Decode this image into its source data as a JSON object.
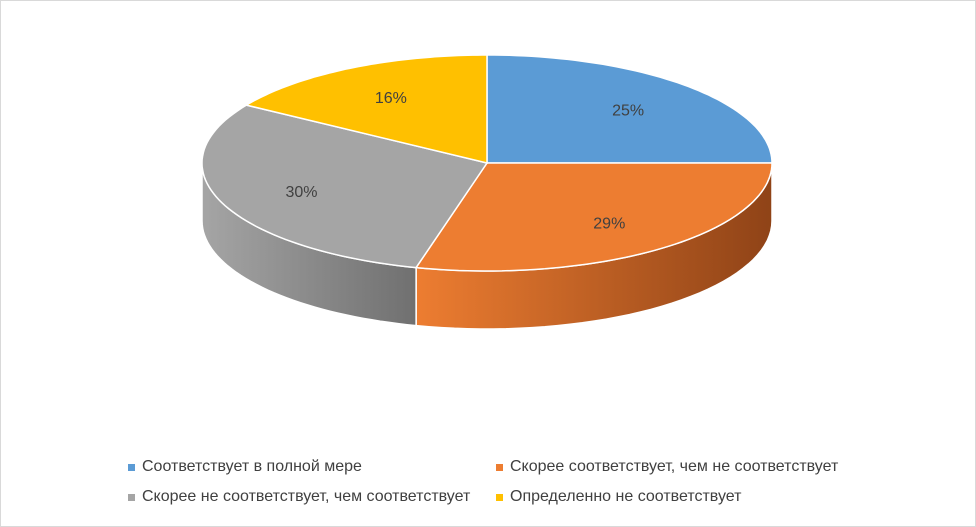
{
  "chart_data": {
    "type": "pie",
    "style": "3d",
    "title": "",
    "slices": [
      {
        "name": "Соответствует в полной мере",
        "value": 25,
        "label": "25%",
        "color": "#5b9bd5",
        "side": "#3a6d9c"
      },
      {
        "name": "Скорее соответствует, чем не соответствует",
        "value": 29,
        "label": "29%",
        "color": "#ed7d31",
        "side": "#8f4317"
      },
      {
        "name": "Скорее не соответствует, чем соответствует",
        "value": 30,
        "label": "30%",
        "color": "#a5a5a5",
        "side": "#707070"
      },
      {
        "name": "Определенно не соответствует",
        "value": 16,
        "label": "16%",
        "color": "#ffc000",
        "side": "#a67c00"
      }
    ],
    "legend_position": "bottom"
  }
}
